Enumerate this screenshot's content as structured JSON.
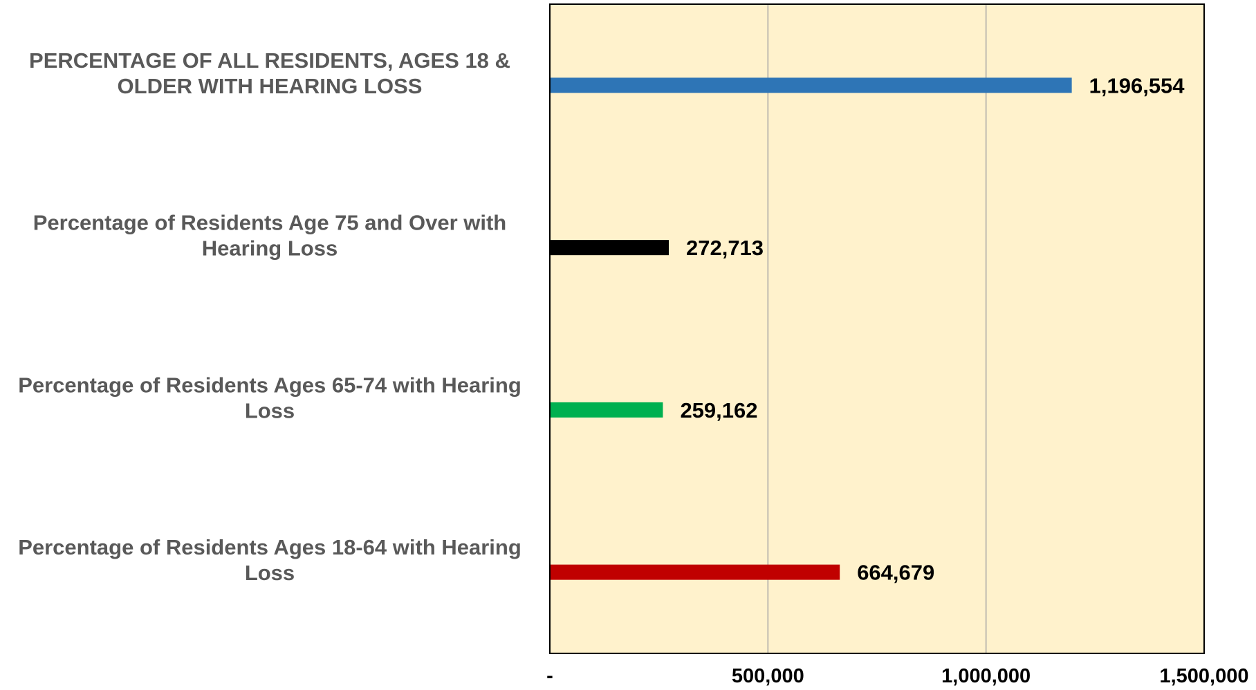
{
  "chart_data": {
    "type": "bar",
    "orientation": "horizontal",
    "title": "",
    "xlabel": "",
    "ylabel": "",
    "categories": [
      [
        "PERCENTAGE OF ALL RESIDENTS, AGES 18 &",
        "OLDER WITH HEARING LOSS"
      ],
      [
        "Percentage of Residents Age 75 and Over with",
        "Hearing Loss"
      ],
      [
        "Percentage of Residents Ages 65-74 with Hearing",
        "Loss"
      ],
      [
        "Percentage of Residents Ages 18-64 with Hearing",
        "Loss"
      ]
    ],
    "values": [
      1196554,
      272713,
      259162,
      664679
    ],
    "value_labels": [
      "1,196,554",
      "272,713",
      "259,162",
      "664,679"
    ],
    "bar_colors": [
      "#2E75B6",
      "#000000",
      "#00B050",
      "#C00000"
    ],
    "xlim": [
      0,
      1500000
    ],
    "xticks": [
      0,
      500000,
      1000000,
      1500000
    ],
    "xtick_labels": [
      "-",
      "500,000",
      "1,000,000",
      "1,500,000"
    ],
    "grid": true,
    "legend": false,
    "colors": {
      "plot_background": "#FFF2CC",
      "gridline": "#A6A6A6",
      "axis_border": "#000000",
      "category_text": "#595959",
      "value_text": "#000000"
    }
  }
}
